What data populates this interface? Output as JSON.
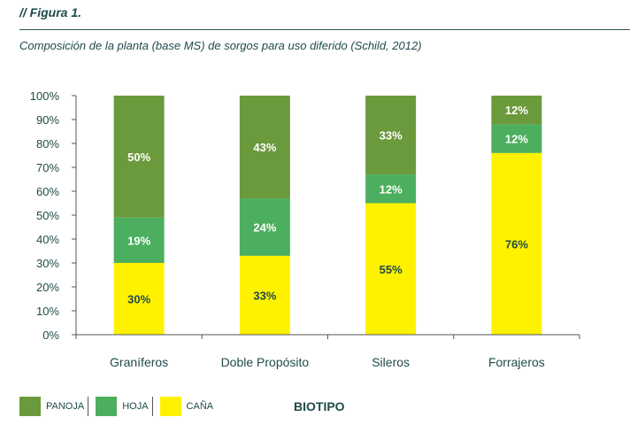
{
  "figure_label": "// Figura 1.",
  "caption": "Composición de la planta (base MS) de sorgos para uso diferido (Schild, 2012)",
  "x_axis_title": "BIOTIPO",
  "colors": {
    "panoja": "#6b9a3c",
    "hoja": "#4caf5f",
    "cana": "#fff200",
    "text": "#1f4a4a"
  },
  "chart_data": {
    "type": "bar",
    "stacked": true,
    "categories": [
      "Graníferos",
      "Doble Propósito",
      "Sileros",
      "Forrajeros"
    ],
    "series": [
      {
        "name": "CAÑA",
        "key": "cana",
        "values": [
          30,
          33,
          55,
          76
        ],
        "labels": [
          "30%",
          "33%",
          "55%",
          "76%"
        ]
      },
      {
        "name": "HOJA",
        "key": "hoja",
        "values": [
          19,
          24,
          12,
          12
        ],
        "labels": [
          "19%",
          "24%",
          "12%",
          "12%"
        ]
      },
      {
        "name": "PANOJA",
        "key": "panoja",
        "values": [
          50,
          43,
          33,
          12
        ],
        "labels": [
          "50%",
          "43%",
          "33%",
          "12%"
        ]
      }
    ],
    "ylim": [
      0,
      100
    ],
    "yticks": [
      "0%",
      "10%",
      "20%",
      "30%",
      "40%",
      "50%",
      "60%",
      "70%",
      "80%",
      "90%",
      "100%"
    ],
    "title": "",
    "xlabel": "BIOTIPO",
    "ylabel": ""
  },
  "legend": [
    {
      "label": "PANOJA",
      "key": "panoja"
    },
    {
      "label": "HOJA",
      "key": "hoja"
    },
    {
      "label": "CAÑA",
      "key": "cana"
    }
  ]
}
